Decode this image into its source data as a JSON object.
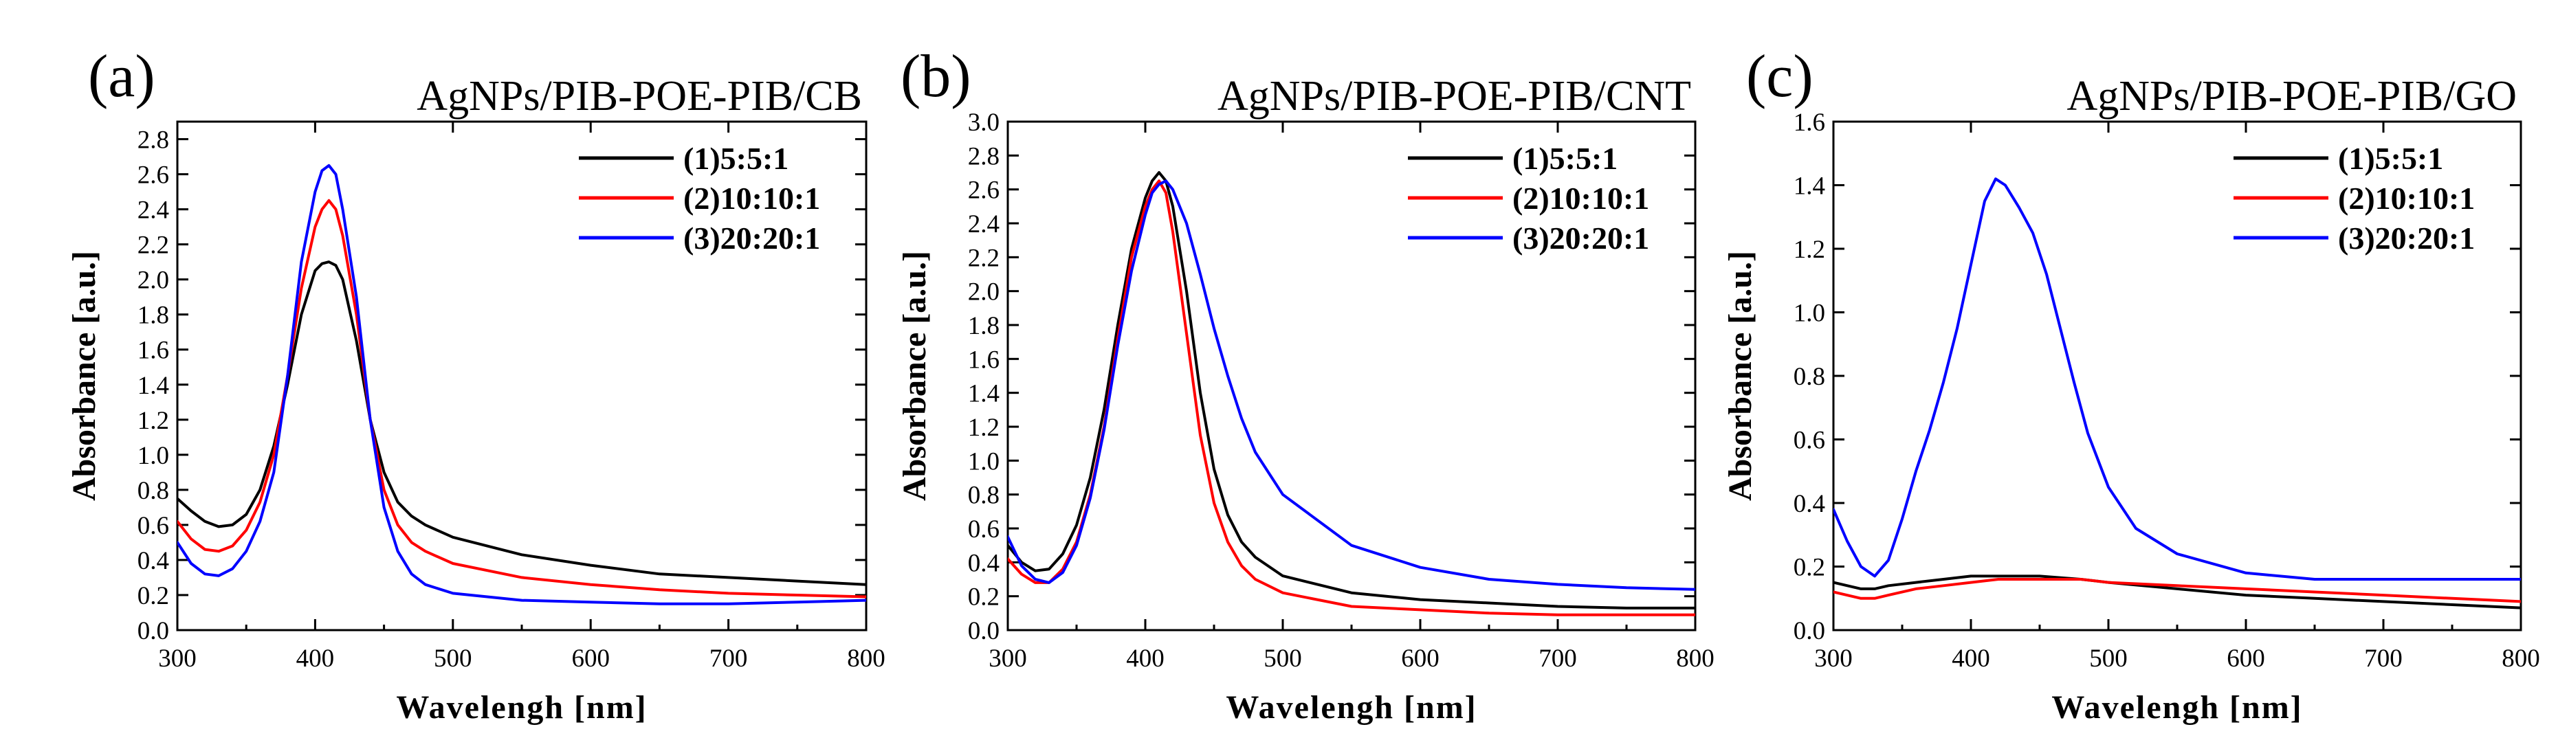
{
  "chart_data": [
    {
      "type": "line",
      "panel_label": "(a)",
      "title": "AgNPs/PIB-POE-PIB/CB",
      "xlabel": "Wavelengh [nm]",
      "ylabel": "Absorbance [a.u.]",
      "xlim": [
        300,
        800
      ],
      "ylim": [
        0.0,
        2.9
      ],
      "xticks": [
        300,
        400,
        500,
        600,
        700,
        800
      ],
      "yticks": [
        0.0,
        0.2,
        0.4,
        0.6,
        0.8,
        1.0,
        1.2,
        1.4,
        1.6,
        1.8,
        2.0,
        2.2,
        2.4,
        2.6,
        2.8
      ],
      "ytick_decimals": 1,
      "legend_position": "top-right",
      "series": [
        {
          "name": "(1)5:5:1",
          "color": "#000000",
          "x": [
            300,
            310,
            320,
            330,
            340,
            350,
            360,
            370,
            380,
            390,
            400,
            405,
            410,
            415,
            420,
            430,
            440,
            450,
            460,
            470,
            480,
            500,
            550,
            600,
            650,
            700,
            750,
            800
          ],
          "y": [
            0.75,
            0.68,
            0.62,
            0.59,
            0.6,
            0.66,
            0.8,
            1.05,
            1.4,
            1.8,
            2.05,
            2.09,
            2.1,
            2.08,
            2.0,
            1.65,
            1.2,
            0.9,
            0.73,
            0.65,
            0.6,
            0.53,
            0.43,
            0.37,
            0.32,
            0.3,
            0.28,
            0.26
          ]
        },
        {
          "name": "(2)10:10:1",
          "color": "#ff0000",
          "x": [
            300,
            310,
            320,
            330,
            340,
            350,
            360,
            370,
            380,
            390,
            400,
            405,
            410,
            415,
            420,
            430,
            440,
            450,
            460,
            470,
            480,
            500,
            550,
            600,
            650,
            700,
            750,
            800
          ],
          "y": [
            0.62,
            0.52,
            0.46,
            0.45,
            0.48,
            0.57,
            0.73,
            1.0,
            1.45,
            1.95,
            2.3,
            2.4,
            2.45,
            2.4,
            2.25,
            1.8,
            1.2,
            0.8,
            0.6,
            0.5,
            0.45,
            0.38,
            0.3,
            0.26,
            0.23,
            0.21,
            0.2,
            0.19
          ]
        },
        {
          "name": "(3)20:20:1",
          "color": "#0000ff",
          "x": [
            300,
            310,
            320,
            330,
            340,
            350,
            360,
            370,
            380,
            390,
            400,
            405,
            410,
            415,
            420,
            430,
            440,
            450,
            460,
            470,
            480,
            500,
            550,
            600,
            650,
            700,
            750,
            800
          ],
          "y": [
            0.5,
            0.38,
            0.32,
            0.31,
            0.35,
            0.45,
            0.62,
            0.9,
            1.45,
            2.1,
            2.5,
            2.62,
            2.65,
            2.6,
            2.4,
            1.9,
            1.2,
            0.7,
            0.45,
            0.32,
            0.26,
            0.21,
            0.17,
            0.16,
            0.15,
            0.15,
            0.16,
            0.17
          ]
        }
      ]
    },
    {
      "type": "line",
      "panel_label": "(b)",
      "title": "AgNPs/PIB-POE-PIB/CNT",
      "xlabel": "Wavelengh [nm]",
      "ylabel": "Absorbance [a.u.]",
      "xlim": [
        300,
        800
      ],
      "ylim": [
        0.0,
        3.0
      ],
      "xticks": [
        300,
        400,
        500,
        600,
        700,
        800
      ],
      "yticks": [
        0.0,
        0.2,
        0.4,
        0.6,
        0.8,
        1.0,
        1.2,
        1.4,
        1.6,
        1.8,
        2.0,
        2.2,
        2.4,
        2.6,
        2.8,
        3.0
      ],
      "ytick_decimals": 1,
      "legend_position": "top-right",
      "series": [
        {
          "name": "(1)5:5:1",
          "color": "#000000",
          "x": [
            300,
            310,
            320,
            330,
            340,
            350,
            360,
            370,
            380,
            390,
            400,
            405,
            410,
            415,
            420,
            430,
            440,
            450,
            460,
            470,
            480,
            500,
            550,
            600,
            650,
            700,
            750,
            800
          ],
          "y": [
            0.5,
            0.4,
            0.35,
            0.36,
            0.45,
            0.62,
            0.9,
            1.3,
            1.8,
            2.25,
            2.55,
            2.65,
            2.7,
            2.65,
            2.5,
            2.0,
            1.4,
            0.95,
            0.68,
            0.52,
            0.43,
            0.32,
            0.22,
            0.18,
            0.16,
            0.14,
            0.13,
            0.13
          ]
        },
        {
          "name": "(2)10:10:1",
          "color": "#ff0000",
          "x": [
            300,
            310,
            320,
            330,
            340,
            350,
            360,
            370,
            380,
            390,
            400,
            405,
            410,
            415,
            420,
            430,
            440,
            450,
            460,
            470,
            480,
            500,
            550,
            600,
            650,
            700,
            750,
            800
          ],
          "y": [
            0.42,
            0.33,
            0.28,
            0.28,
            0.36,
            0.52,
            0.8,
            1.2,
            1.72,
            2.2,
            2.5,
            2.6,
            2.65,
            2.58,
            2.35,
            1.75,
            1.15,
            0.75,
            0.52,
            0.38,
            0.3,
            0.22,
            0.14,
            0.12,
            0.1,
            0.09,
            0.09,
            0.09
          ]
        },
        {
          "name": "(3)20:20:1",
          "color": "#0000ff",
          "x": [
            300,
            310,
            320,
            330,
            340,
            350,
            360,
            370,
            380,
            390,
            400,
            405,
            410,
            415,
            420,
            430,
            440,
            450,
            460,
            470,
            480,
            500,
            550,
            600,
            650,
            700,
            750,
            800
          ],
          "y": [
            0.55,
            0.38,
            0.3,
            0.28,
            0.34,
            0.5,
            0.78,
            1.18,
            1.68,
            2.12,
            2.45,
            2.58,
            2.63,
            2.65,
            2.6,
            2.4,
            2.1,
            1.78,
            1.5,
            1.25,
            1.05,
            0.8,
            0.5,
            0.37,
            0.3,
            0.27,
            0.25,
            0.24
          ]
        }
      ]
    },
    {
      "type": "line",
      "panel_label": "(c)",
      "title": "AgNPs/PIB-POE-PIB/GO",
      "xlabel": "Wavelengh [nm]",
      "ylabel": "Absorbance [a.u.]",
      "xlim": [
        300,
        800
      ],
      "ylim": [
        0.0,
        1.6
      ],
      "xticks": [
        300,
        400,
        500,
        600,
        700,
        800
      ],
      "yticks": [
        0.0,
        0.2,
        0.4,
        0.6,
        0.8,
        1.0,
        1.2,
        1.4,
        1.6
      ],
      "ytick_decimals": 1,
      "legend_position": "top-right",
      "series": [
        {
          "name": "(1)5:5:1",
          "color": "#000000",
          "x": [
            300,
            320,
            330,
            340,
            360,
            380,
            400,
            420,
            450,
            480,
            500,
            550,
            600,
            650,
            700,
            750,
            800
          ],
          "y": [
            0.15,
            0.13,
            0.13,
            0.14,
            0.15,
            0.16,
            0.17,
            0.17,
            0.17,
            0.16,
            0.15,
            0.13,
            0.11,
            0.1,
            0.09,
            0.08,
            0.07
          ]
        },
        {
          "name": "(2)10:10:1",
          "color": "#ff0000",
          "x": [
            300,
            320,
            330,
            340,
            360,
            380,
            400,
            420,
            450,
            480,
            500,
            550,
            600,
            650,
            700,
            750,
            800
          ],
          "y": [
            0.12,
            0.1,
            0.1,
            0.11,
            0.13,
            0.14,
            0.15,
            0.16,
            0.16,
            0.16,
            0.15,
            0.14,
            0.13,
            0.12,
            0.11,
            0.1,
            0.09
          ]
        },
        {
          "name": "(3)20:20:1",
          "color": "#0000ff",
          "x": [
            300,
            310,
            320,
            330,
            340,
            350,
            360,
            370,
            380,
            390,
            400,
            410,
            418,
            425,
            435,
            445,
            455,
            465,
            475,
            485,
            500,
            520,
            550,
            600,
            650,
            700,
            750,
            800
          ],
          "y": [
            0.38,
            0.28,
            0.2,
            0.17,
            0.22,
            0.35,
            0.5,
            0.63,
            0.78,
            0.95,
            1.15,
            1.35,
            1.42,
            1.4,
            1.33,
            1.25,
            1.12,
            0.95,
            0.78,
            0.62,
            0.45,
            0.32,
            0.24,
            0.18,
            0.16,
            0.16,
            0.16,
            0.16
          ]
        }
      ]
    }
  ]
}
